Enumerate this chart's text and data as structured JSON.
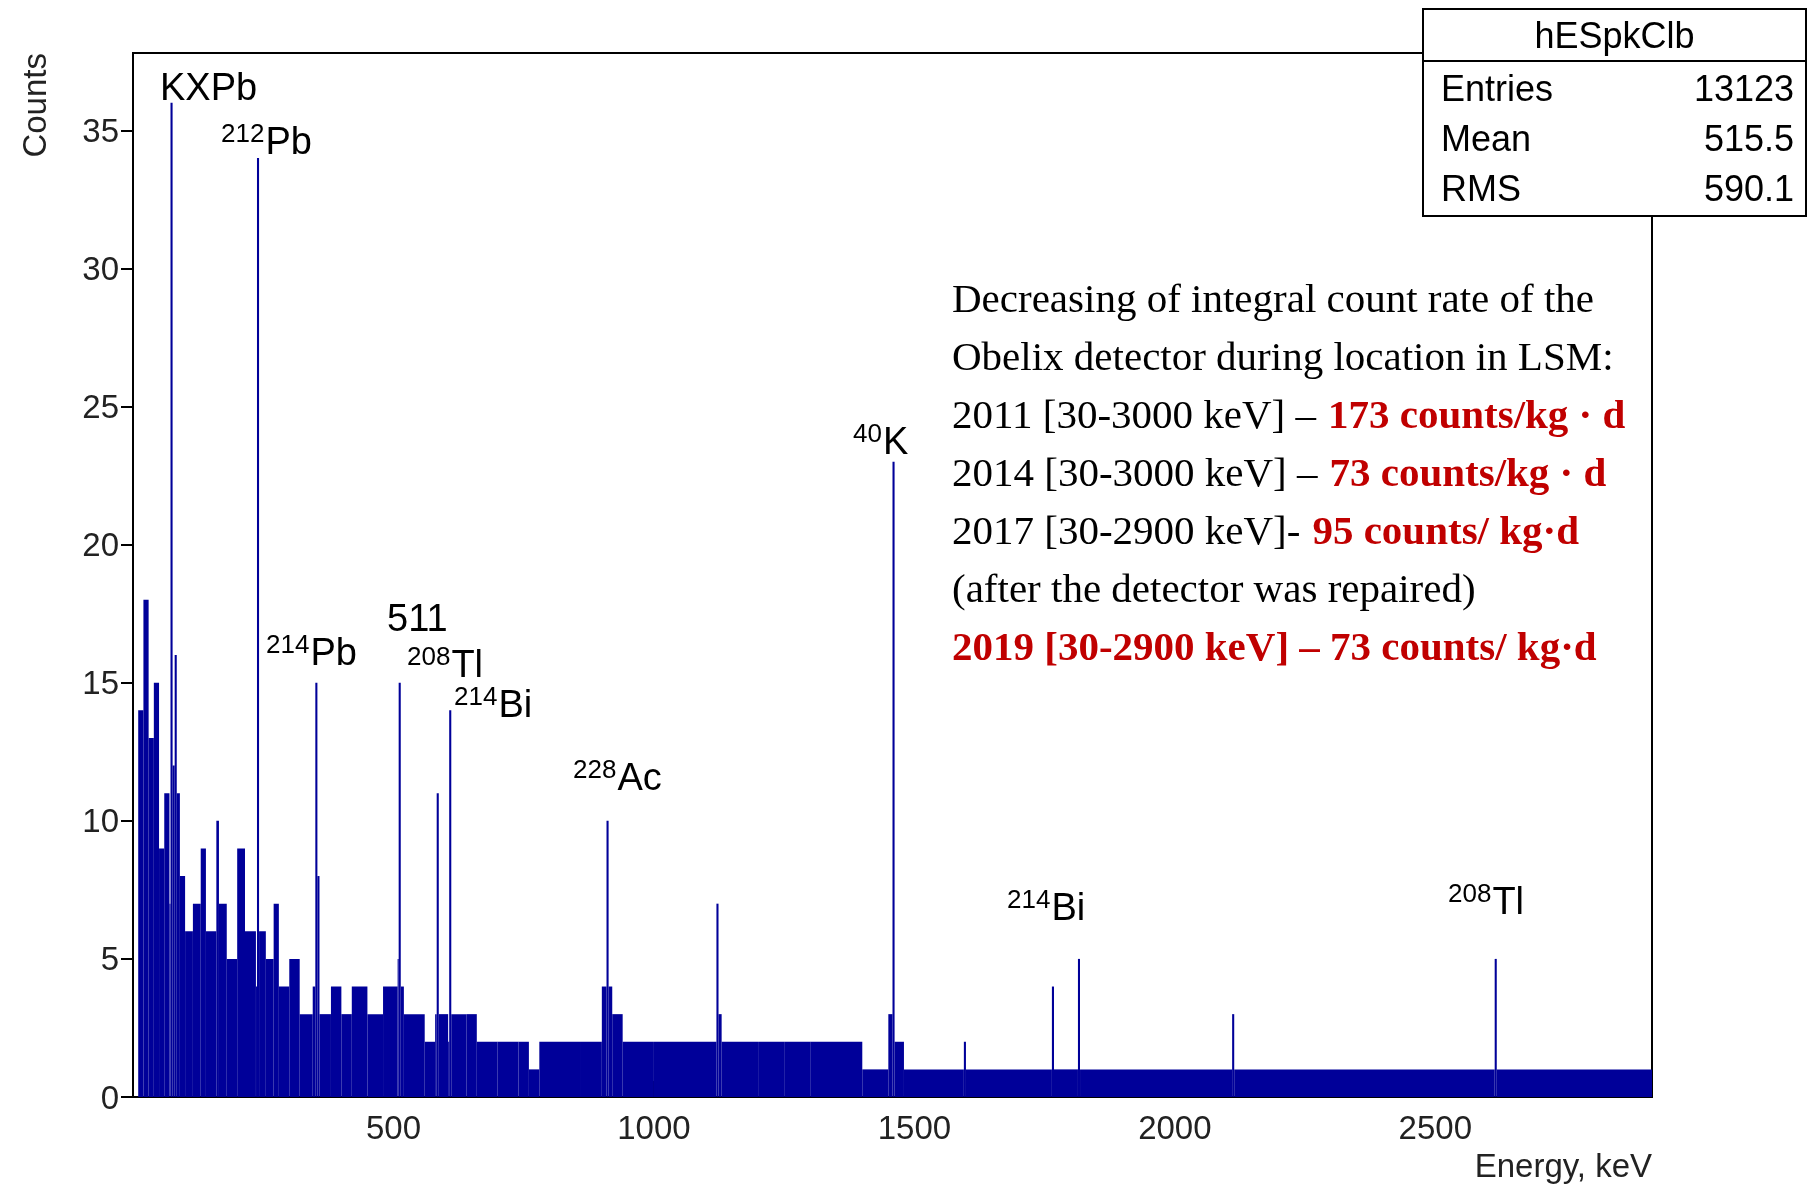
{
  "chart_data": {
    "type": "histogram",
    "xlabel": "Energy, keV",
    "ylabel": "Counts",
    "color": "#000099",
    "bins": [
      10,
      20,
      30,
      40,
      50,
      60,
      70,
      72,
      76,
      80,
      84,
      90,
      100,
      115,
      130,
      140,
      160,
      165,
      180,
      200,
      215,
      236,
      238,
      242,
      255,
      270,
      280,
      300,
      320,
      345,
      350,
      354,
      358,
      380,
      400,
      420,
      450,
      480,
      508,
      510,
      514,
      520,
      560,
      580,
      583,
      587,
      605,
      607,
      611,
      640,
      660,
      700,
      740,
      760,
      780,
      860,
      900,
      909,
      913,
      920,
      940,
      1000,
      1120,
      1124,
      1130,
      1200,
      1250,
      1300,
      1400,
      1450,
      1458,
      1462,
      1480,
      1595,
      1599,
      1764,
      1768,
      1814,
      1818,
      2110,
      2114,
      2614,
      2618,
      2916
    ],
    "values": [
      14,
      18,
      13,
      15,
      9,
      11,
      7,
      36,
      12,
      16,
      11,
      8,
      6,
      7,
      9,
      6,
      10,
      7,
      5,
      9,
      6,
      4,
      34,
      6,
      5,
      7,
      4,
      5,
      3,
      4,
      15,
      8,
      3,
      4,
      3,
      4,
      3,
      4,
      5,
      15,
      4,
      3,
      2,
      3,
      11,
      3,
      2,
      14,
      3,
      3,
      2,
      2,
      2,
      1,
      2,
      2,
      4,
      10,
      4,
      3,
      2,
      2,
      7,
      3,
      2,
      2,
      2,
      2,
      1,
      3,
      23,
      2,
      1,
      2,
      1,
      4,
      1,
      5,
      1,
      3,
      1,
      5,
      1
    ],
    "xlim": [
      0,
      2916
    ],
    "xticks": [
      500,
      1000,
      1500,
      2000,
      2500
    ],
    "ylim": [
      0,
      37.8
    ],
    "yticks": [
      0,
      5,
      10,
      15,
      20,
      25,
      30,
      35
    ],
    "grid": false,
    "annotations": [
      "hESpkClb",
      "Entries",
      "13123",
      "Mean",
      "515.5",
      "RMS",
      "590.1",
      "KXPb",
      "$^{212}$Pb",
      "$^{214}$Pb",
      "511",
      "$^{208}$Tl",
      "$^{214}$Bi",
      "$^{228}$Ac",
      "$^{40}$K",
      "$^{214}$Bi",
      "$^{208}$Tl",
      "Decreasing of integral count rate of the",
      "Obelix detector during location in LSM:",
      "2011 [30-3000 keV] –",
      "173 counts/kg · d",
      "2014 [30-3000 keV] –",
      "73 counts/kg · d",
      "2017 [30-2900 keV]-",
      "95 counts/ kg·d",
      "(after the detector was repaired)",
      "2019 [30-2900 keV] – 73 counts/ kg·d"
    ]
  }
}
